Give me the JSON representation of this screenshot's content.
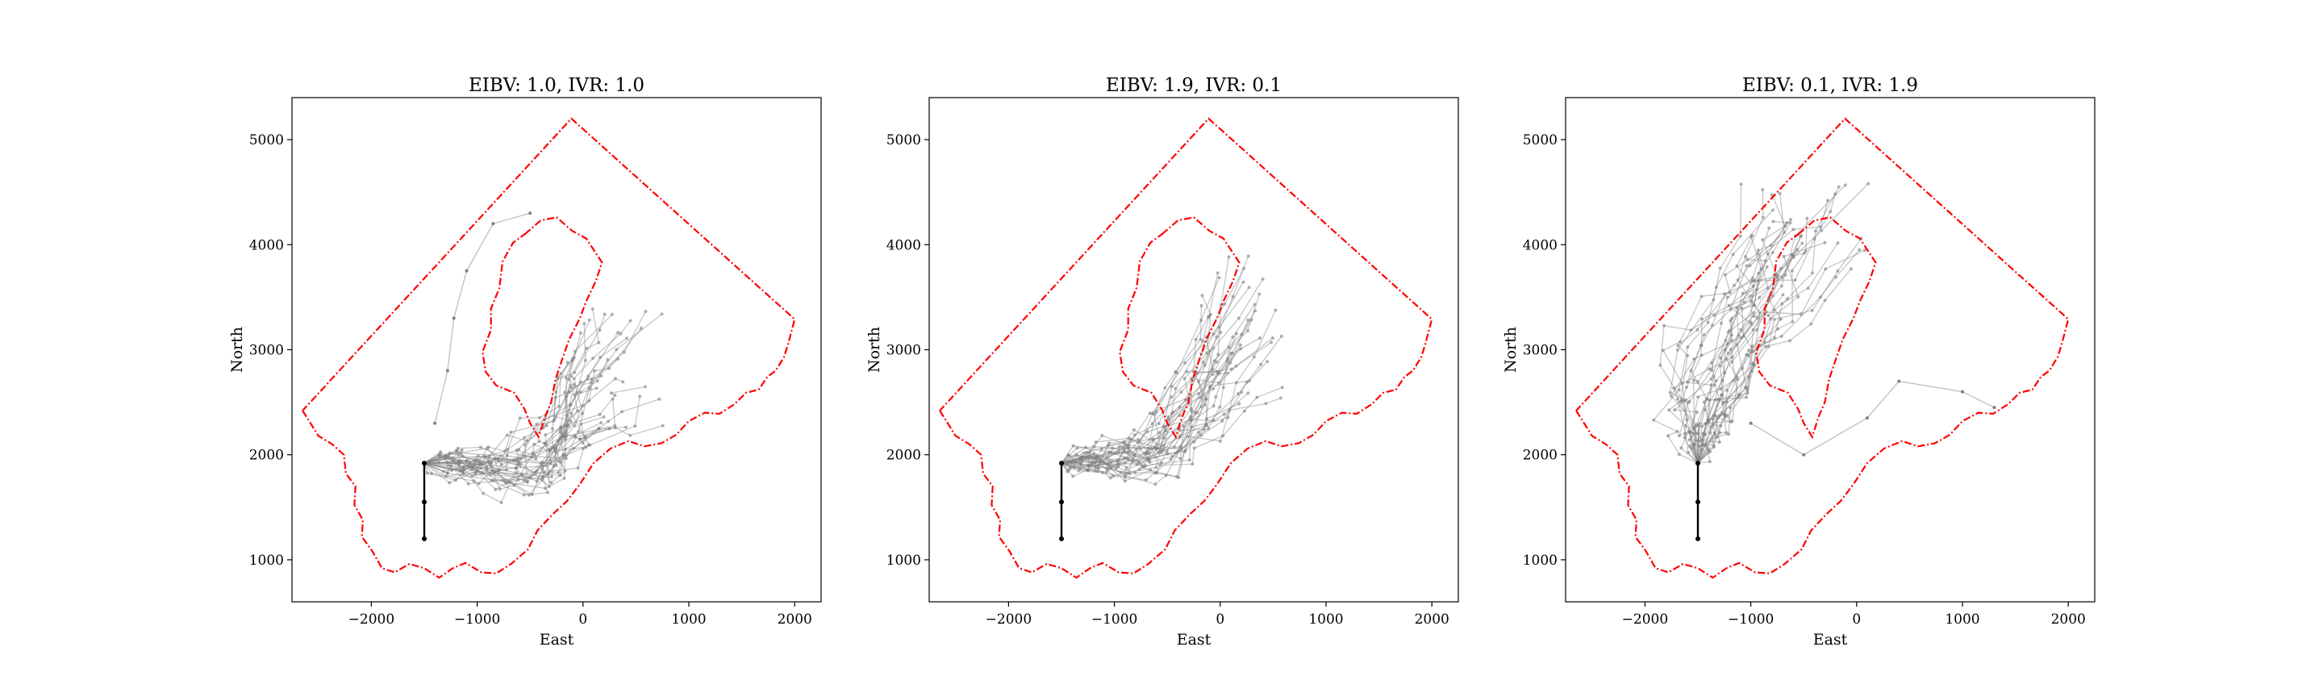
{
  "figure": {
    "panels": [
      {
        "title": "EIBV: 1.0, IVR: 1.0",
        "xlabel": "East",
        "ylabel": "North"
      },
      {
        "title": "EIBV: 1.9, IVR: 0.1",
        "xlabel": "East",
        "ylabel": "North"
      },
      {
        "title": "EIBV: 0.1, IVR: 1.9",
        "xlabel": "East",
        "ylabel": "North"
      }
    ]
  },
  "chart_data": [
    {
      "type": "line",
      "title": "EIBV: 1.0, IVR: 1.0",
      "xlabel": "East",
      "ylabel": "North",
      "xlim": [
        -2750,
        2250
      ],
      "ylim": [
        600,
        5400
      ],
      "xticks": [
        -2000,
        -1000,
        0,
        1000,
        2000
      ],
      "xtick_labels": [
        "−2000",
        "−1000",
        "0",
        "1000",
        "2000"
      ],
      "yticks": [
        1000,
        2000,
        3000,
        4000,
        5000
      ],
      "ytick_labels": [
        "1000",
        "2000",
        "3000",
        "4000",
        "5000"
      ],
      "grid": false,
      "boundary_color": "#ff0000",
      "trajectory_color": "#808080",
      "start_path_color": "#000000",
      "start_path": [
        [
          -1500,
          1200
        ],
        [
          -1500,
          1550
        ],
        [
          -1500,
          1920
        ]
      ],
      "trajectory_region": {
        "east": [
          -1300,
          750
        ],
        "north": [
          1600,
          3400
        ]
      },
      "stray_path": [
        [
          -1400,
          2300
        ],
        [
          -1280,
          2800
        ],
        [
          -1220,
          3300
        ],
        [
          -1100,
          3750
        ],
        [
          -850,
          4200
        ],
        [
          -500,
          4300
        ]
      ]
    },
    {
      "type": "line",
      "title": "EIBV: 1.9, IVR: 0.1",
      "xlabel": "East",
      "ylabel": "North",
      "xlim": [
        -2750,
        2250
      ],
      "ylim": [
        600,
        5400
      ],
      "xticks": [
        -2000,
        -1000,
        0,
        1000,
        2000
      ],
      "xtick_labels": [
        "−2000",
        "−1000",
        "0",
        "1000",
        "2000"
      ],
      "yticks": [
        1000,
        2000,
        3000,
        4000,
        5000
      ],
      "ytick_labels": [
        "1000",
        "2000",
        "3000",
        "4000",
        "5000"
      ],
      "grid": false,
      "boundary_color": "#ff0000",
      "trajectory_color": "#808080",
      "start_path_color": "#000000",
      "start_path": [
        [
          -1500,
          1200
        ],
        [
          -1500,
          1550
        ],
        [
          -1500,
          1920
        ]
      ],
      "trajectory_region": {
        "east": [
          -1300,
          650
        ],
        "north": [
          1600,
          3850
        ]
      }
    },
    {
      "type": "line",
      "title": "EIBV: 0.1, IVR: 1.9",
      "xlabel": "East",
      "ylabel": "North",
      "xlim": [
        -2750,
        2250
      ],
      "ylim": [
        600,
        5400
      ],
      "xticks": [
        -2000,
        -1000,
        0,
        1000,
        2000
      ],
      "xtick_labels": [
        "−2000",
        "−1000",
        "0",
        "1000",
        "2000"
      ],
      "yticks": [
        1000,
        2000,
        3000,
        4000,
        5000
      ],
      "ytick_labels": [
        "1000",
        "2000",
        "3000",
        "4000",
        "5000"
      ],
      "grid": false,
      "boundary_color": "#ff0000",
      "trajectory_color": "#808080",
      "start_path_color": "#000000",
      "start_path": [
        [
          -1500,
          1200
        ],
        [
          -1500,
          1550
        ],
        [
          -1500,
          1920
        ]
      ],
      "trajectory_region": {
        "east": [
          -2300,
          300
        ],
        "north": [
          1800,
          4550
        ]
      },
      "stray_path": [
        [
          -1000,
          2300
        ],
        [
          -500,
          2000
        ],
        [
          100,
          2350
        ],
        [
          400,
          2700
        ],
        [
          1000,
          2600
        ],
        [
          1300,
          2450
        ]
      ]
    }
  ],
  "outer_boundary": [
    [
      -2650,
      2420
    ],
    [
      -2500,
      2180
    ],
    [
      -2370,
      2100
    ],
    [
      -2260,
      2000
    ],
    [
      -2240,
      1820
    ],
    [
      -2150,
      1700
    ],
    [
      -2160,
      1520
    ],
    [
      -2080,
      1380
    ],
    [
      -2090,
      1220
    ],
    [
      -1990,
      1080
    ],
    [
      -1900,
      920
    ],
    [
      -1780,
      880
    ],
    [
      -1640,
      960
    ],
    [
      -1500,
      920
    ],
    [
      -1360,
      830
    ],
    [
      -1230,
      920
    ],
    [
      -1110,
      970
    ],
    [
      -960,
      880
    ],
    [
      -820,
      870
    ],
    [
      -680,
      960
    ],
    [
      -520,
      1100
    ],
    [
      -430,
      1280
    ],
    [
      -280,
      1440
    ],
    [
      -150,
      1560
    ],
    [
      -30,
      1720
    ],
    [
      100,
      1920
    ],
    [
      260,
      2060
    ],
    [
      430,
      2130
    ],
    [
      580,
      2080
    ],
    [
      740,
      2110
    ],
    [
      880,
      2190
    ],
    [
      1000,
      2320
    ],
    [
      1150,
      2400
    ],
    [
      1290,
      2390
    ],
    [
      1430,
      2480
    ],
    [
      1540,
      2590
    ],
    [
      1660,
      2620
    ],
    [
      1740,
      2740
    ],
    [
      1820,
      2800
    ],
    [
      1900,
      2930
    ],
    [
      1940,
      3060
    ],
    [
      2000,
      3290
    ],
    [
      -110,
      5200
    ],
    [
      -2650,
      2420
    ]
  ],
  "inner_boundary": [
    [
      -550,
      4100
    ],
    [
      -400,
      4230
    ],
    [
      -250,
      4260
    ],
    [
      -100,
      4130
    ],
    [
      30,
      4060
    ],
    [
      180,
      3830
    ],
    [
      120,
      3650
    ],
    [
      30,
      3460
    ],
    [
      -30,
      3300
    ],
    [
      -130,
      3100
    ],
    [
      -200,
      2900
    ],
    [
      -260,
      2720
    ],
    [
      -300,
      2500
    ],
    [
      -360,
      2360
    ],
    [
      -420,
      2170
    ],
    [
      -500,
      2300
    ],
    [
      -550,
      2430
    ],
    [
      -650,
      2590
    ],
    [
      -820,
      2660
    ],
    [
      -920,
      2790
    ],
    [
      -950,
      2980
    ],
    [
      -870,
      3190
    ],
    [
      -870,
      3390
    ],
    [
      -790,
      3590
    ],
    [
      -760,
      3840
    ],
    [
      -660,
      4020
    ],
    [
      -550,
      4100
    ]
  ]
}
